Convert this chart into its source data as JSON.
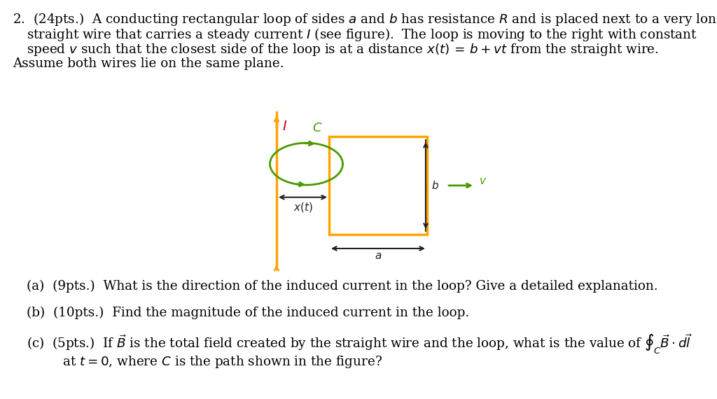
{
  "bg_color": "#ffffff",
  "text_color": "#000000",
  "wire_color": "#FFA500",
  "loop_color": "#4a9a00",
  "rect_color": "#FFA500",
  "dim_color": "#222222",
  "red_color": "#cc0000",
  "green_color": "#4a9a00",
  "fig_width": 10.24,
  "fig_height": 5.7,
  "line1": "2.  (24pts.)  A conducting rectangular loop of sides $a$ and $b$ has resistance $R$ and is placed next to a very long",
  "line2": "straight wire that carries a steady current $I$ (see figure).  The loop is moving to the right with constant",
  "line3": "speed $v$ such that the closest side of the loop is at a distance $x(t)\\, =\\, b + vt$ from the straight wire.",
  "line4": "Assume both wires lie on the same plane.",
  "part_a": "(a)  (9pts.)  What is the direction of the induced current in the loop? Give a detailed explanation.",
  "part_b": "(b)  (10pts.)  Find the magnitude of the induced current in the loop.",
  "part_c1": "(c)  (5pts.)  If $\\vec{B}$ is the total field created by the straight wire and the loop, what is the value of $\\oint_C \\vec{B} \\cdot d\\vec{l}$",
  "part_c2": "     at $t = 0$, where $C$ is the path shown in the figure?"
}
